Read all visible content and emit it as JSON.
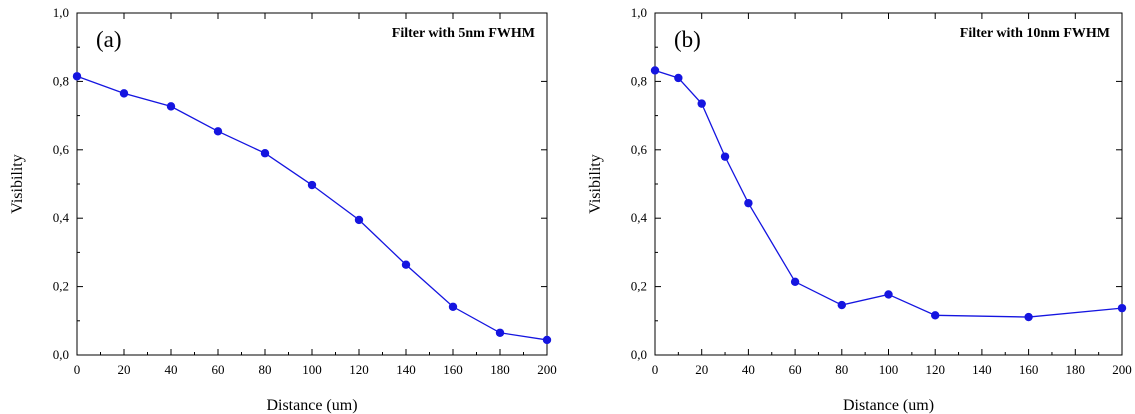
{
  "chart_data": [
    {
      "type": "line",
      "panel_label": "(a)",
      "title": "Filter with 5nm FWHM",
      "xlabel": "Distance (um)",
      "ylabel": "Visibility",
      "xlim": [
        0,
        200
      ],
      "ylim": [
        0,
        1.0
      ],
      "xticks": [
        0,
        20,
        40,
        60,
        80,
        100,
        120,
        140,
        160,
        180,
        200
      ],
      "xtick_labels": [
        "0",
        "20",
        "40",
        "60",
        "80",
        "100",
        "120",
        "140",
        "160",
        "180",
        "200"
      ],
      "yticks": [
        0,
        0.2,
        0.4,
        0.6,
        0.8,
        1.0
      ],
      "ytick_labels": [
        "0,0",
        "0,2",
        "0,4",
        "0,6",
        "0,8",
        "1,0"
      ],
      "grid": false,
      "series": [
        {
          "x": [
            0,
            20,
            40,
            60,
            80,
            100,
            120,
            140,
            160,
            180,
            200
          ],
          "y": [
            0.815,
            0.765,
            0.727,
            0.654,
            0.59,
            0.497,
            0.395,
            0.264,
            0.141,
            0.065,
            0.044
          ],
          "color": "#1515e0",
          "marker": "circle"
        }
      ]
    },
    {
      "type": "line",
      "panel_label": "(b)",
      "title": "Filter with 10nm FWHM",
      "xlabel": "Distance (um)",
      "ylabel": "Visibility",
      "xlim": [
        0,
        200
      ],
      "ylim": [
        0,
        1.0
      ],
      "xticks": [
        0,
        20,
        40,
        60,
        80,
        100,
        120,
        140,
        160,
        180,
        200
      ],
      "xtick_labels": [
        "0",
        "20",
        "40",
        "60",
        "80",
        "100",
        "120",
        "140",
        "160",
        "180",
        "200"
      ],
      "yticks": [
        0,
        0.2,
        0.4,
        0.6,
        0.8,
        1.0
      ],
      "ytick_labels": [
        "0,0",
        "0,2",
        "0,4",
        "0,6",
        "0,8",
        "1,0"
      ],
      "grid": false,
      "series": [
        {
          "x": [
            0,
            10,
            20,
            30,
            40,
            60,
            80,
            100,
            120,
            160,
            200
          ],
          "y": [
            0.832,
            0.81,
            0.735,
            0.58,
            0.444,
            0.214,
            0.146,
            0.177,
            0.116,
            0.111,
            0.137
          ],
          "color": "#1515e0",
          "marker": "circle"
        }
      ]
    }
  ]
}
